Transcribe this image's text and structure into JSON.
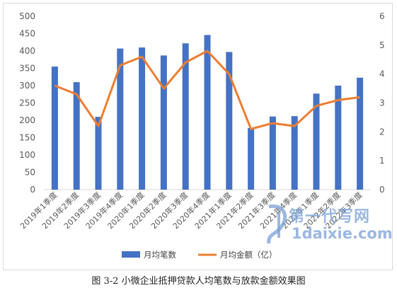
{
  "caption": "图 3-2 小微企业抵押贷款人均笔数与放款金额效果图",
  "watermark": {
    "line1": "第一代写网",
    "line2": "1daixie.com"
  },
  "chart_data": {
    "type": "bar",
    "categories": [
      "2019年1季度",
      "2019年2季度",
      "2019年3季度",
      "2019年4季度",
      "2020年1季度",
      "2020年2季度",
      "2020年3季度",
      "2020年4季度",
      "2021年1季度",
      "2021年2季度",
      "2021年3季度",
      "2021年4季度",
      "2022年1季度",
      "2022年2季度",
      "2022年3季度"
    ],
    "series": [
      {
        "name": "月均笔数",
        "type": "bar",
        "axis": "left",
        "color": "#4472C4",
        "values": [
          355,
          310,
          210,
          407,
          410,
          387,
          422,
          446,
          397,
          178,
          211,
          212,
          277,
          300,
          323
        ]
      },
      {
        "name": "月均金额（亿）",
        "type": "line",
        "axis": "right",
        "color": "#ED7D31",
        "values": [
          3.6,
          3.3,
          2.2,
          4.3,
          4.6,
          3.5,
          4.4,
          4.8,
          4.0,
          2.1,
          2.3,
          2.2,
          2.9,
          3.1,
          3.2
        ]
      }
    ],
    "ylim_left": [
      0,
      500
    ],
    "yticks_left": [
      0,
      50,
      100,
      150,
      200,
      250,
      300,
      350,
      400,
      450,
      500
    ],
    "ylim_right": [
      0,
      6
    ],
    "yticks_right": [
      0,
      1,
      2,
      3,
      4,
      5,
      6
    ],
    "grid": false,
    "legend": "bottom-center"
  }
}
